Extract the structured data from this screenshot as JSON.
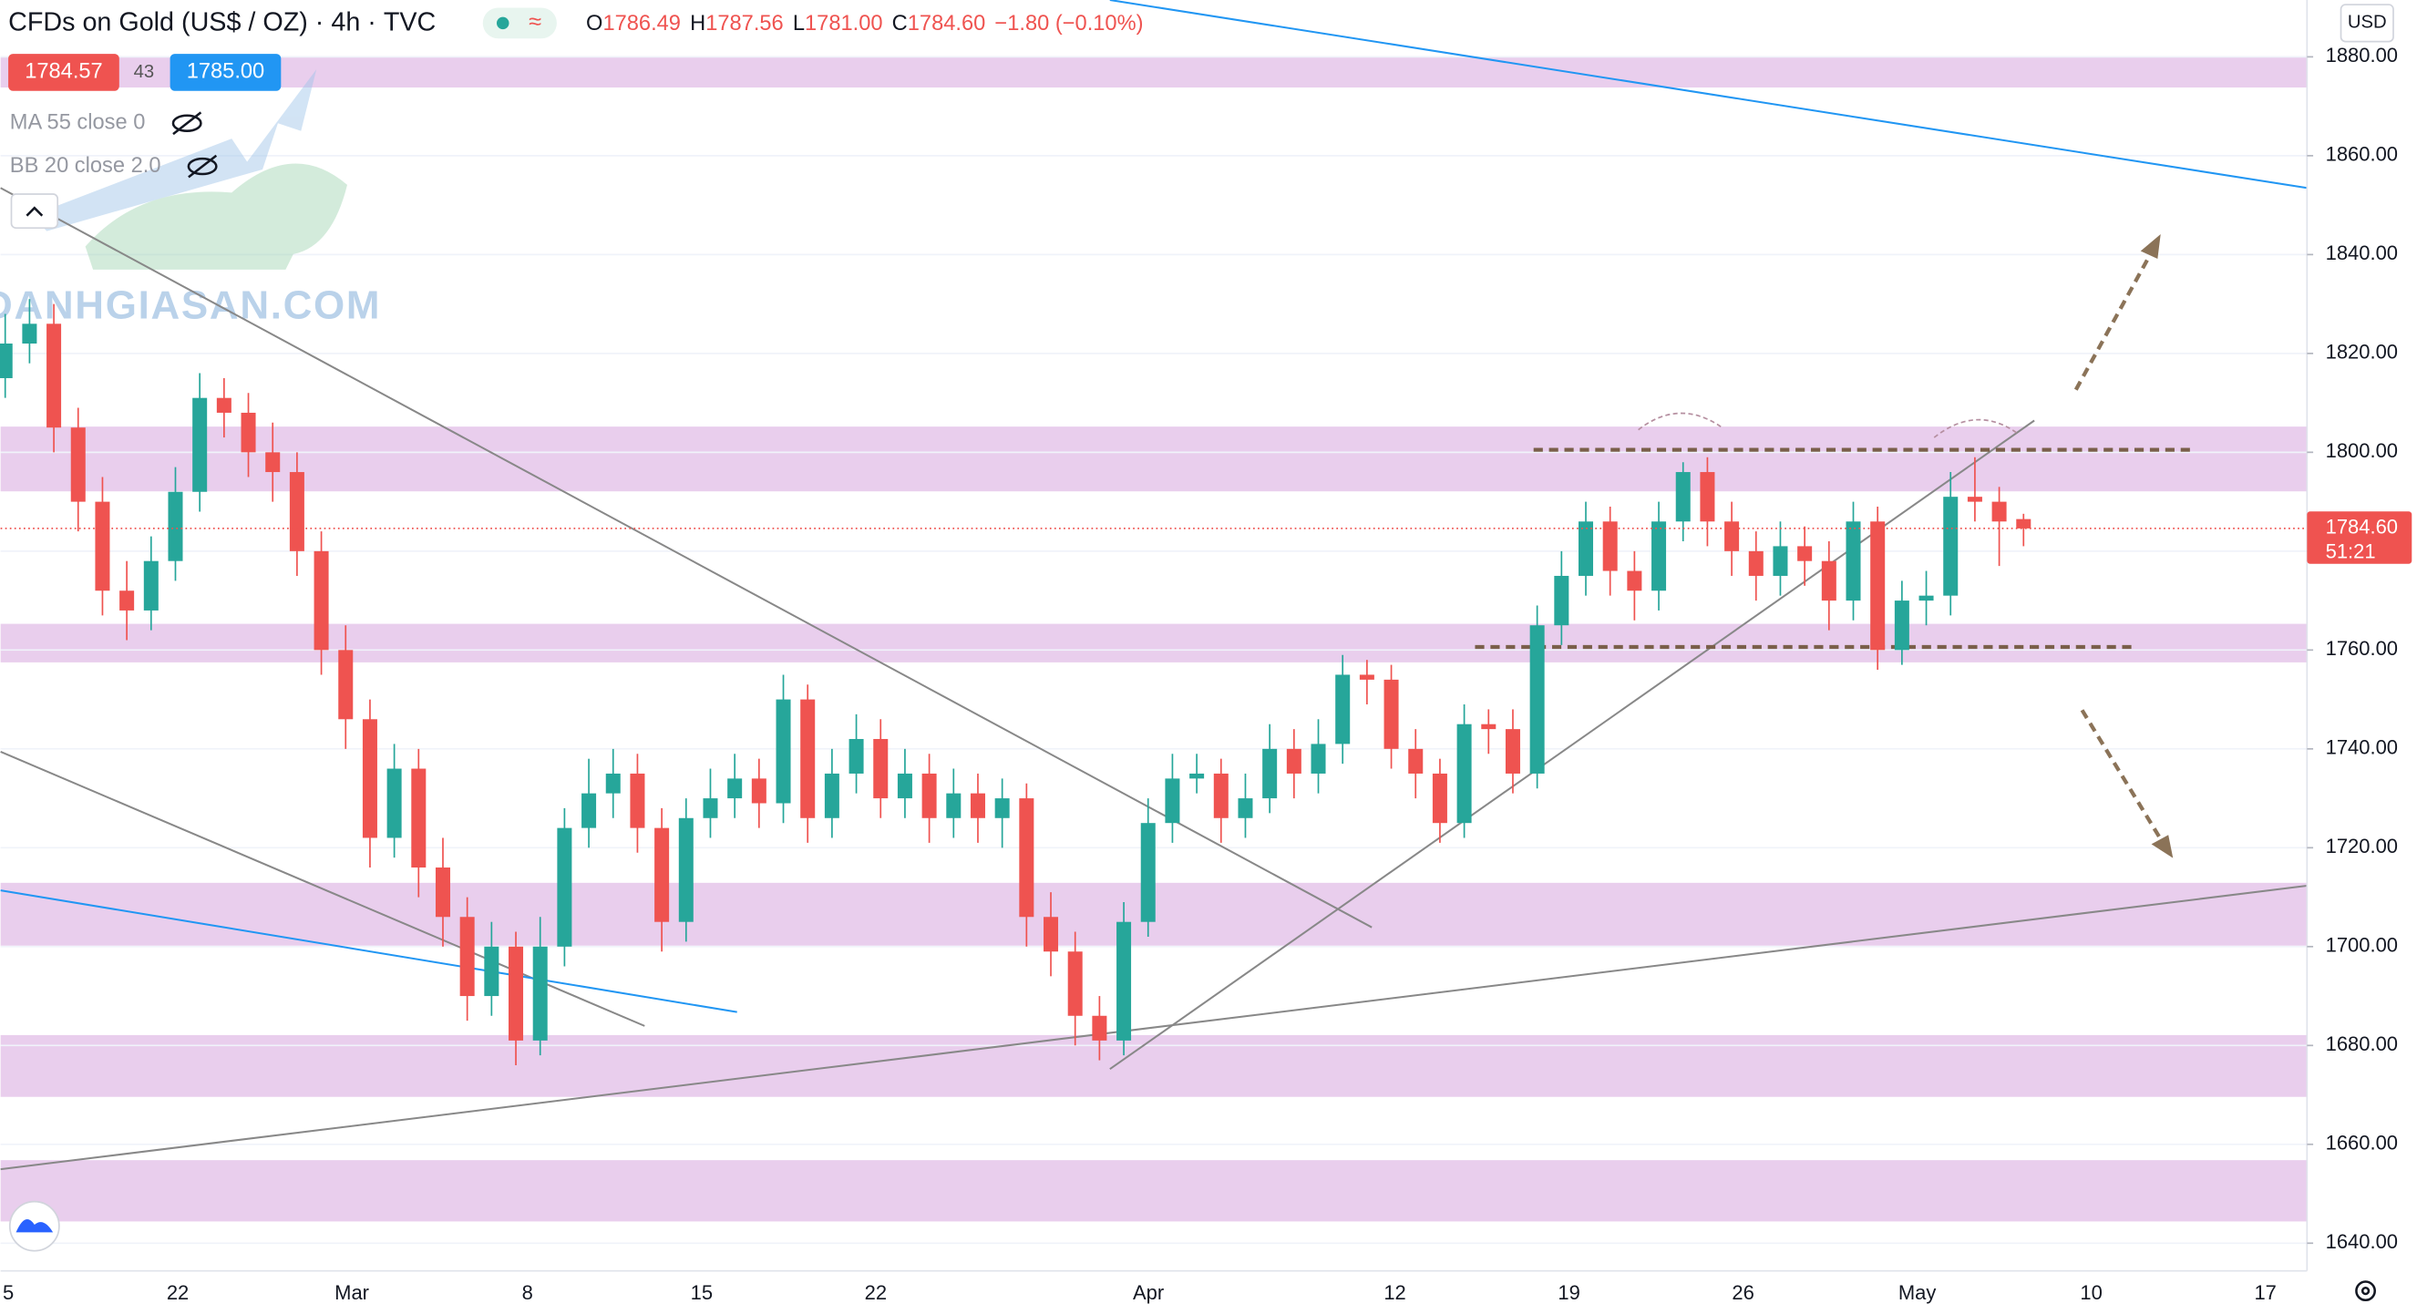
{
  "header": {
    "symbol": "CFDs on Gold (US$ / OZ)",
    "interval": "4h",
    "source": "TVC",
    "o_label": "O",
    "o": "1786.49",
    "h_label": "H",
    "h": "1787.56",
    "l_label": "L",
    "l": "1781.00",
    "c_label": "C",
    "c": "1784.60",
    "change": "−1.80 (−0.10%)",
    "bid": "1784.57",
    "spread": "43",
    "ask": "1785.00",
    "ma": "MA 55 close 0",
    "bb": "BB 20 close 2.0",
    "currency": "USD",
    "price_tag": "1784.60",
    "countdown": "51:21",
    "watermark": "DANHGIASAN.COM"
  },
  "chart_data": {
    "type": "candlestick",
    "up_color": "#26a69a",
    "down_color": "#ef5350",
    "zone_color": "#e1bee7",
    "categories": [
      "5",
      "22",
      "Mar",
      "8",
      "15",
      "22",
      "Apr",
      "12",
      "19",
      "26",
      "May",
      "10",
      "17"
    ],
    "ylim": [
      1634.4,
      1891.5
    ],
    "yticks": [
      {
        "value": 1640,
        "label": "1640.00"
      },
      {
        "value": 1660,
        "label": "1660.00"
      },
      {
        "value": 1680,
        "label": "1680.00"
      },
      {
        "value": 1700,
        "label": "1700.00"
      },
      {
        "value": 1720,
        "label": "1720.00"
      },
      {
        "value": 1740,
        "label": "1740.00"
      },
      {
        "value": 1760,
        "label": "1760.00"
      },
      {
        "value": 1780,
        "label": "1780.00"
      },
      {
        "value": 1800,
        "label": "1800.00"
      },
      {
        "value": 1820,
        "label": "1820.00"
      },
      {
        "value": 1840,
        "label": "1840.00"
      },
      {
        "value": 1860,
        "label": "1860.00"
      },
      {
        "value": 1880,
        "label": "1880.00"
      }
    ],
    "zones": [
      [
        1873.8,
        1880
      ],
      [
        1792.1,
        1805.2
      ],
      [
        1757.5,
        1765.3
      ],
      [
        1700.2,
        1712.9
      ],
      [
        1669.6,
        1682.1
      ],
      [
        1644.4,
        1656.8
      ]
    ],
    "open": [
      1815,
      1822,
      1826,
      1805,
      1790,
      1772,
      1768,
      1778,
      1792,
      1811,
      1808,
      1800,
      1796,
      1780,
      1760,
      1746,
      1722,
      1736,
      1716,
      1706,
      1690,
      1700,
      1681,
      1700,
      1724,
      1731,
      1735,
      1724,
      1705,
      1726,
      1730,
      1734,
      1729,
      1750,
      1726,
      1735,
      1742,
      1730,
      1735,
      1726,
      1731,
      1726,
      1730,
      1706,
      1699,
      1686,
      1681,
      1705,
      1725,
      1734,
      1735,
      1726,
      1730,
      1740,
      1735,
      1741,
      1755,
      1754,
      1740,
      1735,
      1725,
      1745,
      1744,
      1735,
      1765,
      1775,
      1786,
      1776,
      1772,
      1786,
      1796,
      1786,
      1780,
      1775,
      1781,
      1778,
      1770,
      1786,
      1760,
      1770,
      1771,
      1791,
      1790,
      1786.49
    ],
    "high": [
      1828,
      1831,
      1830,
      1809,
      1795,
      1778,
      1783,
      1797,
      1816,
      1815,
      1812,
      1806,
      1800,
      1784,
      1765,
      1750,
      1741,
      1740,
      1722,
      1710,
      1705,
      1703,
      1706,
      1728,
      1738,
      1740,
      1739,
      1728,
      1730,
      1736,
      1739,
      1738,
      1755,
      1753,
      1740,
      1747,
      1746,
      1740,
      1739,
      1736,
      1735,
      1734,
      1733,
      1711,
      1703,
      1690,
      1709,
      1730,
      1739,
      1739,
      1738,
      1735,
      1745,
      1744,
      1746,
      1759,
      1758,
      1757,
      1744,
      1738,
      1749,
      1748,
      1748,
      1769,
      1780,
      1790,
      1789,
      1780,
      1790,
      1798,
      1799,
      1790,
      1784,
      1786,
      1785,
      1782,
      1790,
      1789,
      1774,
      1776,
      1796,
      1799,
      1793,
      1787.56
    ],
    "low": [
      1811,
      1818,
      1800,
      1784,
      1767,
      1762,
      1764,
      1774,
      1788,
      1803,
      1795,
      1790,
      1775,
      1755,
      1740,
      1716,
      1718,
      1710,
      1700,
      1685,
      1686,
      1676,
      1678,
      1696,
      1720,
      1726,
      1719,
      1699,
      1701,
      1722,
      1726,
      1724,
      1725,
      1721,
      1722,
      1731,
      1726,
      1726,
      1721,
      1722,
      1721,
      1720,
      1700,
      1694,
      1680,
      1677,
      1678,
      1702,
      1721,
      1731,
      1721,
      1722,
      1727,
      1730,
      1731,
      1737,
      1749,
      1736,
      1730,
      1721,
      1722,
      1739,
      1731,
      1732,
      1761,
      1771,
      1771,
      1766,
      1768,
      1782,
      1781,
      1775,
      1770,
      1771,
      1773,
      1764,
      1766,
      1756,
      1757,
      1765,
      1767,
      1786,
      1777,
      1781.0
    ],
    "close": [
      1822,
      1826,
      1805,
      1790,
      1772,
      1768,
      1778,
      1792,
      1811,
      1808,
      1800,
      1796,
      1780,
      1760,
      1746,
      1722,
      1736,
      1716,
      1706,
      1690,
      1700,
      1681,
      1700,
      1724,
      1731,
      1735,
      1724,
      1705,
      1726,
      1730,
      1734,
      1729,
      1750,
      1726,
      1735,
      1742,
      1730,
      1735,
      1726,
      1731,
      1726,
      1730,
      1706,
      1699,
      1686,
      1681,
      1705,
      1725,
      1734,
      1735,
      1726,
      1730,
      1740,
      1735,
      1741,
      1755,
      1754,
      1740,
      1735,
      1725,
      1745,
      1744,
      1735,
      1765,
      1775,
      1786,
      1776,
      1772,
      1786,
      1796,
      1786,
      1780,
      1775,
      1781,
      1778,
      1770,
      1786,
      1760,
      1770,
      1771,
      1791,
      1790,
      1786,
      1784.6
    ]
  }
}
